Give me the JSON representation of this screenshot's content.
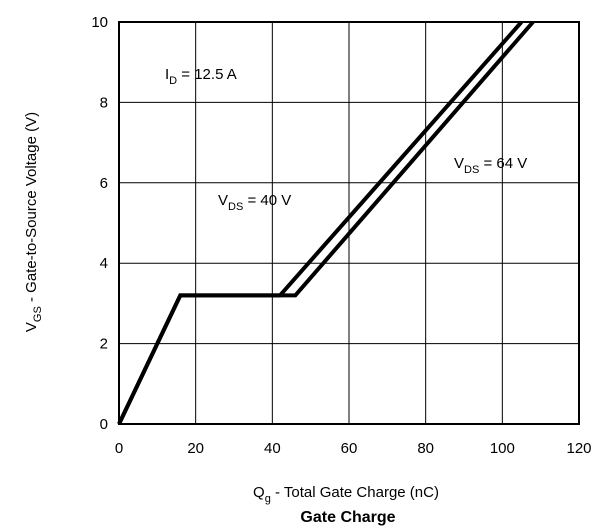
{
  "chart_data": {
    "type": "line",
    "title": "Gate Charge",
    "xlabel": {
      "main": "Q",
      "sub": "g",
      "rest": " - Total Gate Charge (nC)"
    },
    "ylabel": {
      "main": "V",
      "sub": "GS",
      "rest": "  - Gate-to-Source Voltage (V)"
    },
    "xlim": [
      0,
      120
    ],
    "ylim": [
      0,
      10
    ],
    "xticks": [
      "0",
      "20",
      "40",
      "60",
      "80",
      "100",
      "120"
    ],
    "yticks": [
      "0",
      "2",
      "4",
      "6",
      "8",
      "10"
    ],
    "grid": true,
    "series": [
      {
        "name": "VDS = 40 V",
        "x": [
          0,
          16,
          42,
          105
        ],
        "y": [
          0,
          3.2,
          3.2,
          10
        ]
      },
      {
        "name": "VDS = 64 V",
        "x": [
          0,
          16,
          46,
          108
        ],
        "y": [
          0,
          3.2,
          3.2,
          10
        ]
      }
    ],
    "annotations": [
      {
        "id": "id",
        "main": "I",
        "sub": "D",
        "rest": " = 12.5 A"
      },
      {
        "id": "vds40",
        "main": "V",
        "sub": "DS",
        "rest": " = 40 V"
      },
      {
        "id": "vds64",
        "main": "V",
        "sub": "DS",
        "rest": " = 64 V"
      }
    ]
  }
}
